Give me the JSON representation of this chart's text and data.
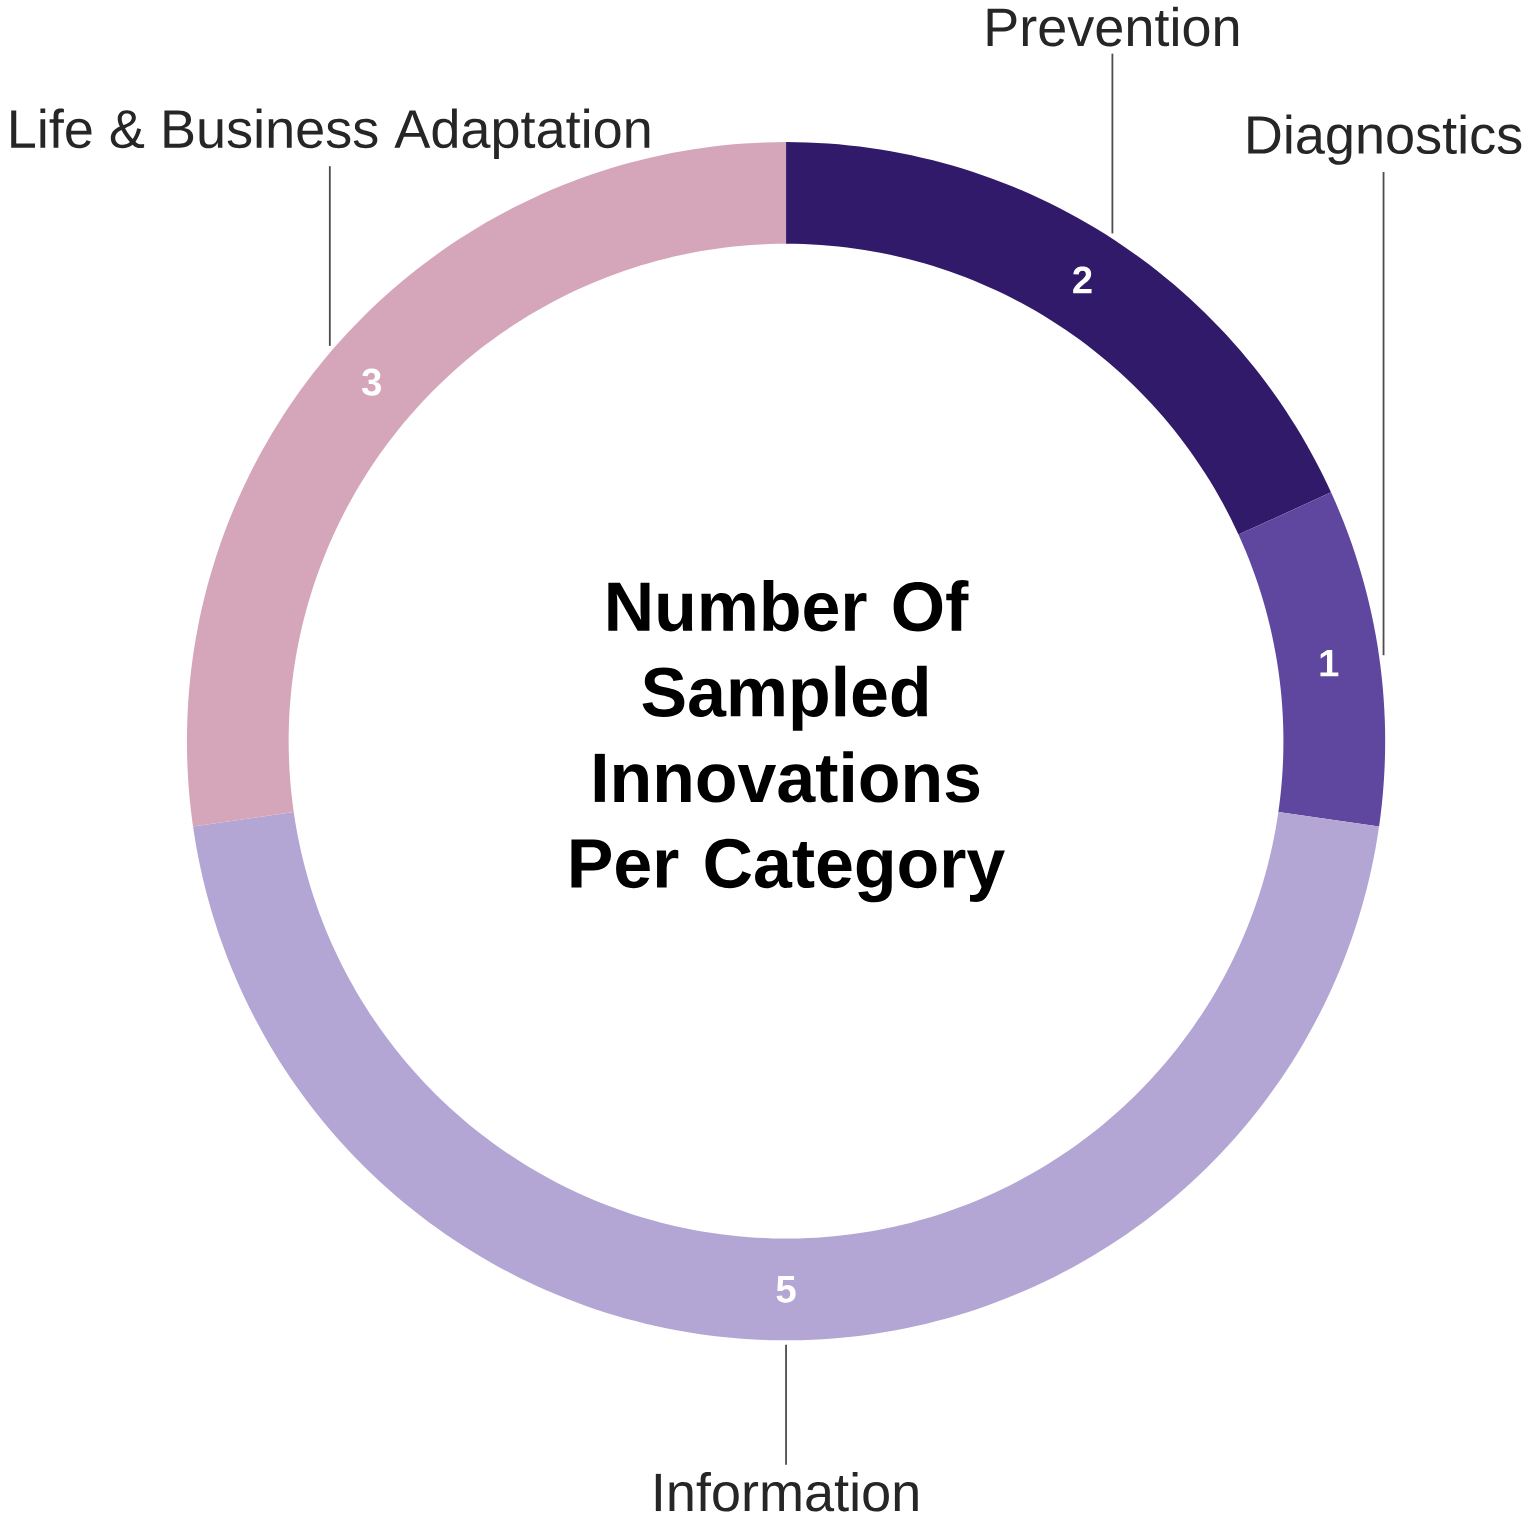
{
  "chart_data": {
    "type": "donut",
    "title": "Number Of Sampled Innovations Per Category",
    "categories": [
      "Prevention",
      "Diagnostics",
      "Information",
      "Life & Business Adaptation"
    ],
    "values": [
      2,
      1,
      5,
      3
    ],
    "colors": [
      "#321a6a",
      "#5f47a0",
      "#b3a6d4",
      "#d5a6b9"
    ],
    "data_labels": true
  }
}
